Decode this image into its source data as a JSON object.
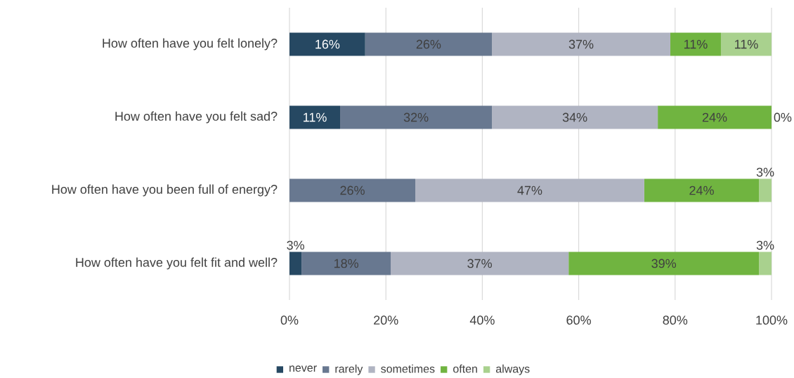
{
  "chart_data": {
    "type": "bar",
    "orientation": "horizontal",
    "stacked": true,
    "categories": [
      "How often have you felt lonely?",
      "How often have you felt sad?",
      "How often have you been full of energy?",
      "How often have you felt fit and well?"
    ],
    "series": [
      {
        "name": "never",
        "color": "#264862",
        "values": [
          15.7,
          10.5,
          0,
          2.5
        ],
        "value_labels": [
          "16%",
          "11%",
          null,
          "3%"
        ]
      },
      {
        "name": "rarely",
        "color": "#687890",
        "values": [
          26.3,
          31.5,
          26.1,
          18.5
        ],
        "value_labels": [
          "26%",
          "32%",
          "26%",
          "18%"
        ]
      },
      {
        "name": "sometimes",
        "color": "#b0b4c2",
        "values": [
          37.0,
          34.4,
          47.5,
          36.9
        ],
        "value_labels": [
          "37%",
          "34%",
          "47%",
          "37%"
        ]
      },
      {
        "name": "often",
        "color": "#70b440",
        "values": [
          10.5,
          23.6,
          23.8,
          39.5
        ],
        "value_labels": [
          "11%",
          "24%",
          "24%",
          "39%"
        ]
      },
      {
        "name": "always",
        "color": "#a9d18e",
        "values": [
          10.5,
          0,
          2.6,
          2.6
        ],
        "value_labels": [
          "11%",
          "0%",
          "3%",
          "3%"
        ]
      }
    ],
    "xlim": [
      0,
      100
    ],
    "xticks": [
      {
        "value": 0,
        "label": "0%"
      },
      {
        "value": 20,
        "label": "20%"
      },
      {
        "value": 40,
        "label": "40%"
      },
      {
        "value": 60,
        "label": "60%"
      },
      {
        "value": 80,
        "label": "80%"
      },
      {
        "value": 100,
        "label": "100%"
      }
    ],
    "grid": "x",
    "legend": "bottom"
  }
}
